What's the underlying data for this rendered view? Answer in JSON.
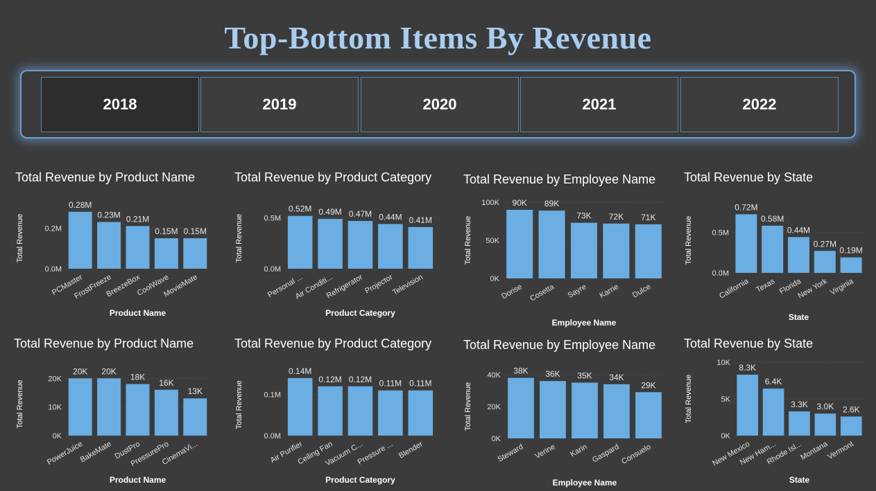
{
  "header": {
    "title": "Top-Bottom Items By Revenue"
  },
  "years": [
    {
      "label": "2018",
      "selected": true
    },
    {
      "label": "2019",
      "selected": false
    },
    {
      "label": "2020",
      "selected": false
    },
    {
      "label": "2021",
      "selected": false
    },
    {
      "label": "2022",
      "selected": false
    }
  ],
  "colors": {
    "bar": "#6aaee3",
    "title": "#a9cdf0",
    "background": "#3b3b3b"
  },
  "chart_data": [
    {
      "type": "bar",
      "title": "Total Revenue by Product Name",
      "xlabel": "Product Name",
      "ylabel": "Total Revenue",
      "categories": [
        "PCMaster",
        "FrostFreeze",
        "BreezeBox",
        "CoolWave",
        "MovieMate"
      ],
      "values": [
        0.28,
        0.23,
        0.21,
        0.15,
        0.15
      ],
      "data_labels": [
        "0.28M",
        "0.23M",
        "0.21M",
        "0.15M",
        "0.15M"
      ],
      "yticks": [
        0,
        0.2
      ],
      "ytick_labels": [
        "0.0M",
        "0.2M"
      ],
      "ylim": [
        0,
        0.3
      ]
    },
    {
      "type": "bar",
      "title": "Total Revenue by Product Category",
      "xlabel": "Product Category",
      "ylabel": "Total Revenue",
      "categories": [
        "Personal ...",
        "Air Conditi...",
        "Refrigerator",
        "Projector",
        "Television"
      ],
      "values": [
        0.52,
        0.49,
        0.47,
        0.44,
        0.41
      ],
      "data_labels": [
        "0.52M",
        "0.49M",
        "0.47M",
        "0.44M",
        "0.41M"
      ],
      "yticks": [
        0,
        0.5
      ],
      "ytick_labels": [
        "0.0M",
        "0.5M"
      ],
      "ylim": [
        0,
        0.6
      ]
    },
    {
      "type": "bar",
      "title": "Total Revenue by Employee Name",
      "xlabel": "Employee Name",
      "ylabel": "Total Revenue",
      "categories": [
        "Dorise",
        "Cosetta",
        "Sayre",
        "Karrie",
        "Dulce"
      ],
      "values": [
        90,
        89,
        73,
        72,
        71
      ],
      "data_labels": [
        "90K",
        "89K",
        "73K",
        "72K",
        "71K"
      ],
      "yticks": [
        0,
        50,
        100
      ],
      "ytick_labels": [
        "0K",
        "50K",
        "100K"
      ],
      "ylim": [
        0,
        100
      ]
    },
    {
      "type": "bar",
      "title": "Total Revenue by State",
      "xlabel": "State",
      "ylabel": "Total Revenue",
      "categories": [
        "California",
        "Texas",
        "Florida",
        "New York",
        "Virginia"
      ],
      "values": [
        0.72,
        0.58,
        0.44,
        0.27,
        0.19
      ],
      "data_labels": [
        "0.72M",
        "0.58M",
        "0.44M",
        "0.27M",
        "0.19M"
      ],
      "yticks": [
        0,
        0.5
      ],
      "ytick_labels": [
        "0.0M",
        "0.5M"
      ],
      "ylim": [
        0,
        0.8
      ]
    },
    {
      "type": "bar",
      "title": "Total Revenue by Product Name",
      "xlabel": "Product Name",
      "ylabel": "Total Revenue",
      "categories": [
        "PowerJuice",
        "BakeMate",
        "DustPro",
        "PressurePro",
        "CinemaVi..."
      ],
      "values": [
        20,
        20,
        18,
        16,
        13
      ],
      "data_labels": [
        "20K",
        "20K",
        "18K",
        "16K",
        "13K"
      ],
      "yticks": [
        0,
        10,
        20
      ],
      "ytick_labels": [
        "0K",
        "10K",
        "20K"
      ],
      "ylim": [
        0,
        22
      ]
    },
    {
      "type": "bar",
      "title": "Total Revenue by Product Category",
      "xlabel": "Product Category",
      "ylabel": "Total Revenue",
      "categories": [
        "Air Purifier",
        "Ceiling Fan",
        "Vacuum C...",
        "Pressure ...",
        "Blender"
      ],
      "values": [
        0.14,
        0.12,
        0.12,
        0.11,
        0.11
      ],
      "data_labels": [
        "0.14M",
        "0.12M",
        "0.12M",
        "0.11M",
        "0.11M"
      ],
      "yticks": [
        0,
        0.1
      ],
      "ytick_labels": [
        "0.0M",
        "0.1M"
      ],
      "ylim": [
        0,
        0.15
      ]
    },
    {
      "type": "bar",
      "title": "Total Revenue by Employee Name",
      "xlabel": "Employee Name",
      "ylabel": "Total Revenue",
      "categories": [
        "Steward",
        "Verine",
        "Karin",
        "Gaspard",
        "Consuelo"
      ],
      "values": [
        38,
        36,
        35,
        34,
        29
      ],
      "data_labels": [
        "38K",
        "36K",
        "35K",
        "34K",
        "29K"
      ],
      "yticks": [
        0,
        20,
        40
      ],
      "ytick_labels": [
        "0K",
        "20K",
        "40K"
      ],
      "ylim": [
        0,
        40
      ]
    },
    {
      "type": "bar",
      "title": "Total Revenue by State",
      "xlabel": "State",
      "ylabel": "Total Revenue",
      "categories": [
        "New Mexico",
        "New Ham...",
        "Rhode Isl...",
        "Montana",
        "Vermont"
      ],
      "values": [
        8.3,
        6.4,
        3.3,
        3.0,
        2.6
      ],
      "data_labels": [
        "8.3K",
        "6.4K",
        "3.3K",
        "3.0K",
        "2.6K"
      ],
      "yticks": [
        0,
        5,
        10
      ],
      "ytick_labels": [
        "0K",
        "5K",
        "10K"
      ],
      "ylim": [
        0,
        10
      ]
    }
  ]
}
